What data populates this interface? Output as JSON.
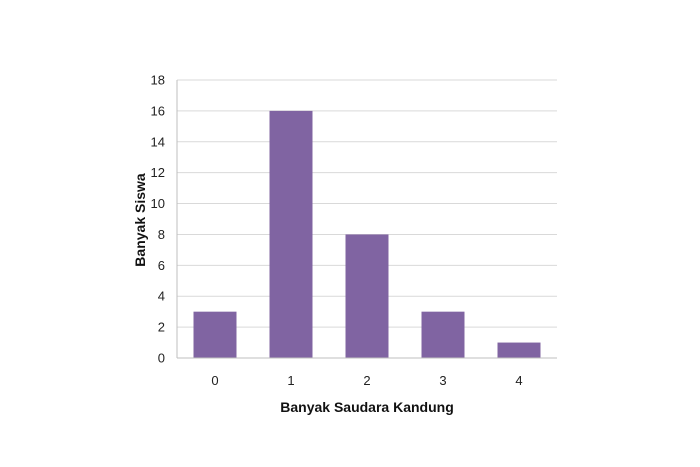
{
  "chart_data": {
    "type": "bar",
    "title": "",
    "xlabel": "Banyak Saudara Kandung",
    "ylabel": "Banyak Siswa",
    "categories": [
      "0",
      "1",
      "2",
      "3",
      "4"
    ],
    "values": [
      3,
      16,
      8,
      3,
      1
    ],
    "ylim": [
      0,
      18
    ],
    "yticks": [
      0,
      2,
      4,
      6,
      8,
      10,
      12,
      14,
      16,
      18
    ],
    "grid": true,
    "legend": "none",
    "colors": {
      "bar": "#8064a2",
      "grid": "#d9d9d9",
      "axis": "#bfbfbf"
    }
  }
}
